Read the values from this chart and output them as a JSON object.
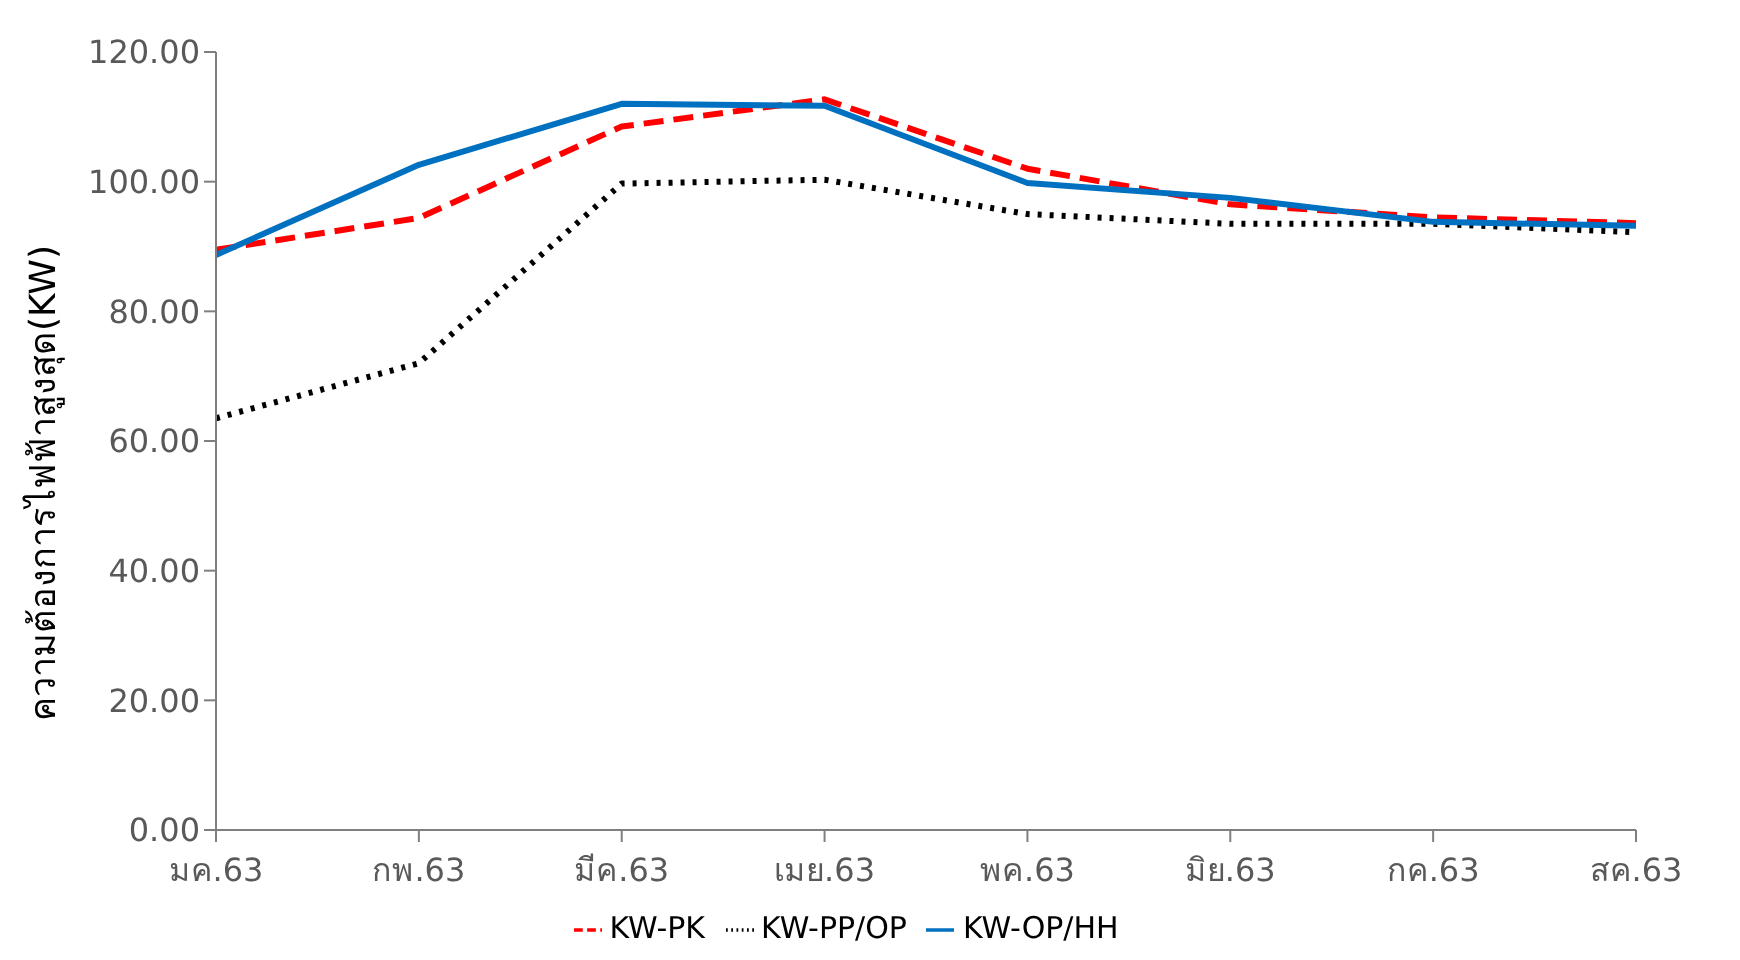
{
  "chart_data": {
    "type": "line",
    "ylabel": "ความต้องการไฟฟ้าสูงสุด(KW)",
    "categories": [
      "มค.63",
      "กพ.63",
      "มีค.63",
      "เมย.63",
      "พค.63",
      "มิย.63",
      "กค.63",
      "สค.63"
    ],
    "series": [
      {
        "name": "KW-PK",
        "color": "#ff0000",
        "line_style": "dashed",
        "values": [
          89.5,
          94.4,
          108.5,
          112.7,
          102,
          96.5,
          94.5,
          93.6
        ]
      },
      {
        "name": "KW-PP/OP",
        "color": "#000000",
        "line_style": "dotted",
        "values": [
          63.5,
          72,
          99.7,
          100.3,
          95,
          93.5,
          93.5,
          92.2
        ]
      },
      {
        "name": "KW-OP/HH",
        "color": "#0070c0",
        "line_style": "solid",
        "values": [
          88.7,
          102.6,
          112,
          111.7,
          99.8,
          97.5,
          93.8,
          93.2
        ]
      }
    ],
    "ylim": [
      0,
      120
    ],
    "yticks": [
      {
        "value": 0,
        "label": "0.00"
      },
      {
        "value": 20,
        "label": "20.00"
      },
      {
        "value": 40,
        "label": "40.00"
      },
      {
        "value": 60,
        "label": "60.00"
      },
      {
        "value": 80,
        "label": "80.00"
      },
      {
        "value": 100,
        "label": "100.00"
      },
      {
        "value": 120,
        "label": "120.00"
      }
    ],
    "grid": false,
    "legend": "bottom",
    "marker": "none"
  }
}
